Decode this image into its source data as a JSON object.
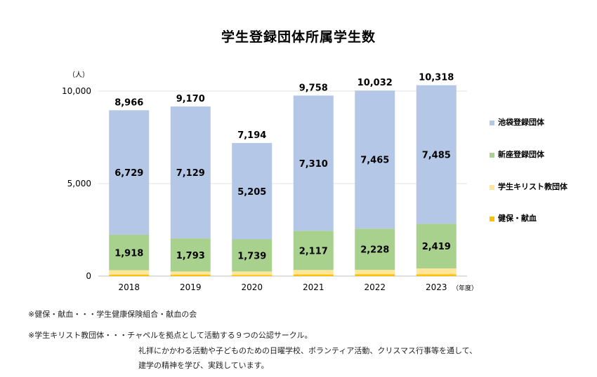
{
  "chart_data": {
    "type": "bar",
    "stacked": true,
    "title": "学生登録団体所属学生数",
    "unit_label": "（人）",
    "x_unit_label": "（年度）",
    "categories": [
      "2018",
      "2019",
      "2020",
      "2021",
      "2022",
      "2023"
    ],
    "series": [
      {
        "name": "健保・献血",
        "color": "#FFC000",
        "values": [
          80,
          75,
          60,
          90,
          95,
          100
        ]
      },
      {
        "name": "学生キリスト教団体",
        "color": "#FFE699",
        "values": [
          239,
          173,
          190,
          241,
          244,
          314
        ]
      },
      {
        "name": "新座登録団体",
        "color": "#A9D18E",
        "values": [
          1918,
          1793,
          1739,
          2117,
          2228,
          2419
        ]
      },
      {
        "name": "池袋登録団体",
        "color": "#B4C7E7",
        "values": [
          6729,
          7129,
          5205,
          7310,
          7465,
          7485
        ]
      }
    ],
    "totals": [
      "8,966",
      "9,170",
      "7,194",
      "9,758",
      "10,032",
      "10,318"
    ],
    "total_values": [
      8966,
      9170,
      7194,
      9758,
      10032,
      10318
    ],
    "segment_labels": {
      "新座登録団体": [
        "1,918",
        "1,793",
        "1,739",
        "2,117",
        "2,228",
        "2,419"
      ],
      "池袋登録団体": [
        "6,729",
        "7,129",
        "5,205",
        "7,310",
        "7,465",
        "7,485"
      ]
    },
    "y_ticks": [
      0,
      5000,
      10000
    ],
    "y_tick_labels": [
      "0",
      "5,000",
      "10,000"
    ],
    "ylim": [
      0,
      10000
    ],
    "grid": true,
    "legend_position": "right"
  },
  "notes": {
    "line1": "※健保・献血・・・学生健康保険組合・献血の会",
    "line2": "※学生キリスト教団体・・・チャペルを拠点として活動する９つの公認サークル。",
    "line3": "礼拝にかかわる活動や子どものための日曜学校、ボランティア活動、クリスマス行事等を通して、",
    "line4": "建学の精神を学び、実践しています。"
  }
}
